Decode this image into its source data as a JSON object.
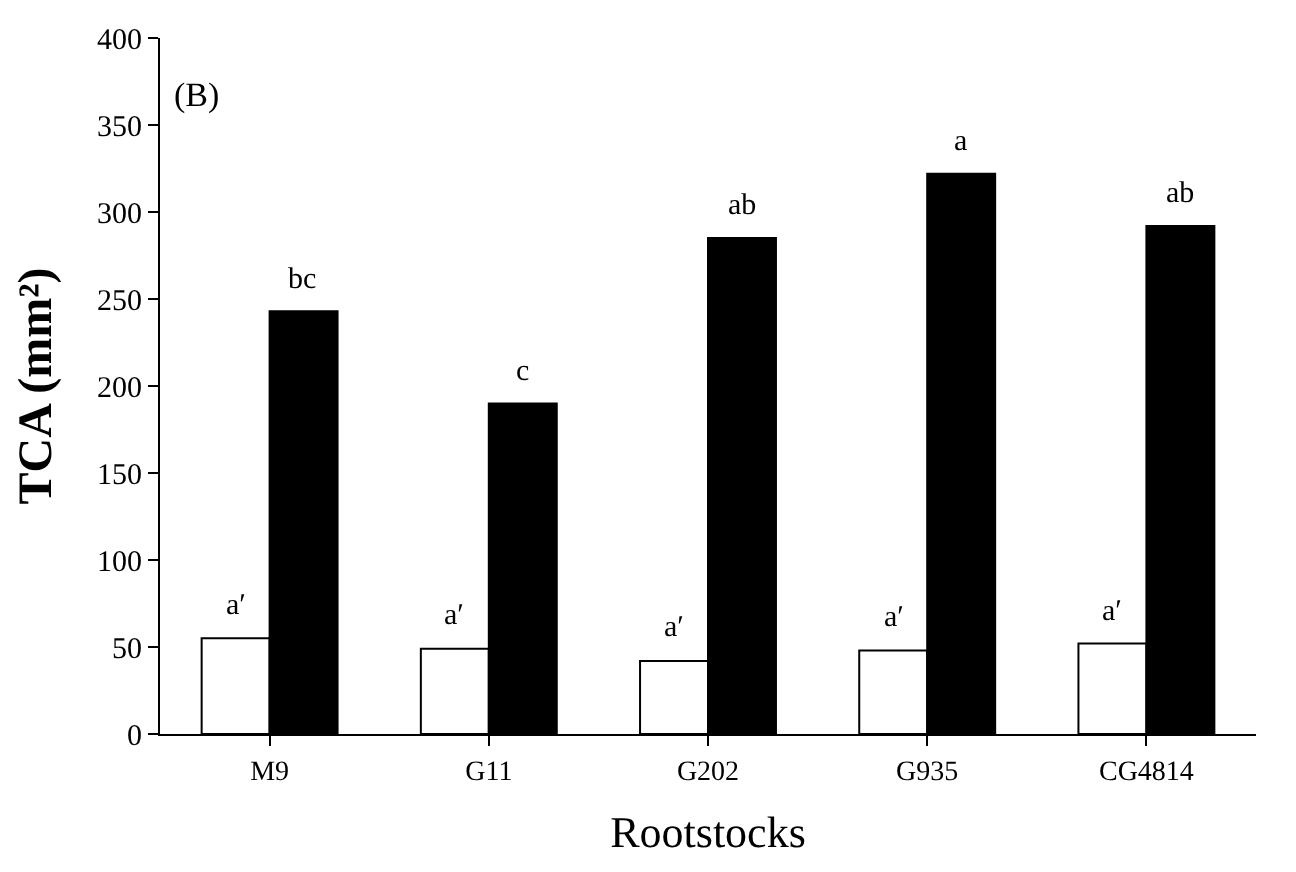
{
  "chart_data": {
    "type": "bar",
    "xlabel": "Rootstocks",
    "ylabel": "TCA (mm²)",
    "categories": [
      "M9",
      "G11",
      "G202",
      "G935",
      "CG4814"
    ],
    "series": [
      {
        "color": "#ffffff",
        "values": [
          55,
          49,
          42,
          48,
          52
        ]
      },
      {
        "color": "#000000",
        "values": [
          243,
          190,
          285,
          322,
          292
        ]
      }
    ],
    "ylim": [
      0,
      400
    ],
    "yticks": [
      0,
      50,
      100,
      150,
      200,
      250,
      300,
      350,
      400
    ],
    "annotations": [
      "(B)",
      {
        "text": "a′",
        "x": "M9",
        "y": 55
      },
      {
        "text": "a′",
        "x": "G11",
        "y": 49
      },
      {
        "text": "a′",
        "x": "G202",
        "y": 42
      },
      {
        "text": "a′",
        "x": "G935",
        "y": 48
      },
      {
        "text": "a′",
        "x": "CG4814",
        "y": 52
      },
      {
        "text": "bc",
        "x": "M9",
        "y": 243
      },
      {
        "text": "c",
        "x": "G11",
        "y": 190
      },
      {
        "text": "ab",
        "x": "G202",
        "y": 285
      },
      {
        "text": "a",
        "x": "G935",
        "y": 322
      },
      {
        "text": "ab",
        "x": "CG4814",
        "y": 292
      }
    ]
  }
}
